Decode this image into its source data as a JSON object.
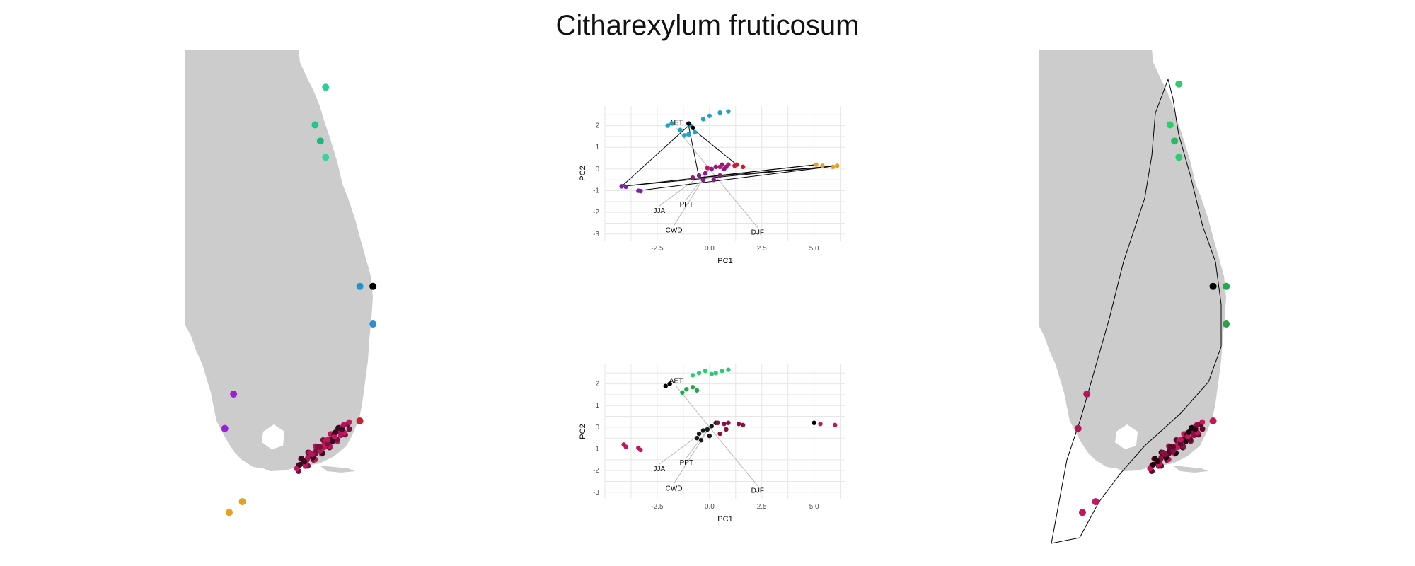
{
  "title": "Citharexylum fruticosum",
  "colors": {
    "land": "#cccccc",
    "grid": "#e6e6e6",
    "vector": "#b8b8b8",
    "hull": "#000000"
  },
  "chart_data": [
    {
      "type": "map",
      "panel": "map-left",
      "points": [
        {
          "lon": -80.6,
          "lat": 28.55,
          "color": "#2ecf8f"
        },
        {
          "lon": -80.72,
          "lat": 28.2,
          "color": "#22c58a"
        },
        {
          "lon": -80.66,
          "lat": 28.05,
          "color": "#20b879"
        },
        {
          "lon": -80.6,
          "lat": 27.9,
          "color": "#36d49a"
        },
        {
          "lon": -80.21,
          "lat": 26.7,
          "color": "#2096c8"
        },
        {
          "lon": -80.06,
          "lat": 26.7,
          "color": "#000000"
        },
        {
          "lon": -80.06,
          "lat": 26.35,
          "color": "#2b8fd0"
        },
        {
          "lon": -81.65,
          "lat": 25.7,
          "color": "#9a20d8"
        },
        {
          "lon": -81.75,
          "lat": 25.38,
          "color": "#9a20d8"
        },
        {
          "lon": -80.21,
          "lat": 25.45,
          "color": "#d11a2a"
        },
        {
          "lon": -81.7,
          "lat": 24.6,
          "color": "#e8a020"
        },
        {
          "lon": -81.55,
          "lat": 24.7,
          "color": "#e8a020"
        }
      ]
    },
    {
      "type": "scatter",
      "panel": "pca-top",
      "xlabel": "PC1",
      "ylabel": "PC2",
      "xlim": [
        -5,
        6.5
      ],
      "ylim": [
        -3.3,
        2.9
      ],
      "xticks": [
        -2.5,
        0.0,
        2.5,
        5.0
      ],
      "xtick_labels": [
        "-2.5",
        "0.0",
        "2.5",
        "5.0"
      ],
      "yticks": [
        -3,
        -2,
        -1,
        0,
        1,
        2
      ],
      "ytick_labels": [
        "-3",
        "-2",
        "-1",
        "0",
        "1",
        "2"
      ],
      "vectors": [
        {
          "name": "AET",
          "x": -1.6,
          "y": 1.9
        },
        {
          "name": "PPT",
          "x": -1.1,
          "y": -1.4
        },
        {
          "name": "JJA",
          "x": -2.4,
          "y": -1.7
        },
        {
          "name": "CWD",
          "x": -1.7,
          "y": -2.6
        },
        {
          "name": "DJF",
          "x": 2.3,
          "y": -2.7
        }
      ],
      "clusters": [
        {
          "color": "#1fa3c6",
          "points": [
            [
              -2.0,
              2.0
            ],
            [
              -1.8,
              2.1
            ],
            [
              -1.4,
              1.8
            ],
            [
              -1.0,
              1.6
            ],
            [
              -0.7,
              1.7
            ],
            [
              -0.3,
              2.3
            ],
            [
              0.0,
              2.45
            ],
            [
              0.5,
              2.6
            ],
            [
              0.9,
              2.65
            ],
            [
              -1.2,
              1.55
            ],
            [
              -0.9,
              2.0
            ]
          ]
        },
        {
          "color": "#000000",
          "points": [
            [
              -1.0,
              2.1
            ],
            [
              -0.8,
              1.9
            ]
          ]
        },
        {
          "color": "#8a1a8a",
          "points": [
            [
              -0.8,
              -0.4
            ],
            [
              -0.5,
              -0.3
            ],
            [
              -0.2,
              -0.2
            ],
            [
              0.1,
              0.0
            ],
            [
              0.3,
              0.1
            ],
            [
              0.5,
              -0.3
            ],
            [
              0.7,
              0.0
            ],
            [
              -0.3,
              -0.5
            ],
            [
              0.2,
              -0.5
            ],
            [
              0.6,
              0.2
            ],
            [
              0.8,
              0.1
            ]
          ]
        },
        {
          "color": "#c2185b",
          "points": [
            [
              0.5,
              0.1
            ],
            [
              0.9,
              0.2
            ],
            [
              1.2,
              0.15
            ],
            [
              -0.1,
              0.05
            ]
          ]
        },
        {
          "color": "#d11a2a",
          "points": [
            [
              1.3,
              0.2
            ],
            [
              1.6,
              0.1
            ]
          ]
        },
        {
          "color": "#e6a020",
          "points": [
            [
              5.1,
              0.2
            ],
            [
              5.4,
              0.15
            ],
            [
              5.9,
              0.1
            ],
            [
              6.1,
              0.15
            ]
          ]
        },
        {
          "color": "#7a1fb0",
          "points": [
            [
              -4.2,
              -0.8
            ],
            [
              -4.0,
              -0.82
            ],
            [
              -3.4,
              -1.0
            ],
            [
              -3.3,
              -1.02
            ]
          ]
        }
      ],
      "hull_edges": [
        [
          [
            -4.2,
            -0.8
          ],
          [
            -1.0,
            2.0
          ]
        ],
        [
          [
            -1.0,
            2.0
          ],
          [
            1.3,
            0.2
          ]
        ],
        [
          [
            -4.2,
            -0.8
          ],
          [
            5.1,
            0.2
          ]
        ],
        [
          [
            -4.2,
            -0.8
          ],
          [
            6.1,
            0.15
          ]
        ],
        [
          [
            -3.4,
            -1.0
          ],
          [
            6.1,
            0.15
          ]
        ],
        [
          [
            -0.5,
            -0.4
          ],
          [
            5.1,
            0.2
          ]
        ],
        [
          [
            -0.5,
            -0.4
          ],
          [
            6.1,
            0.15
          ]
        ],
        [
          [
            -0.5,
            -0.4
          ],
          [
            -1.0,
            2.0
          ]
        ]
      ]
    },
    {
      "type": "scatter",
      "panel": "pca-bottom",
      "xlabel": "PC1",
      "ylabel": "PC2",
      "xlim": [
        -5,
        6.5
      ],
      "ylim": [
        -3.3,
        2.9
      ],
      "xticks": [
        -2.5,
        0.0,
        2.5,
        5.0
      ],
      "xtick_labels": [
        "-2.5",
        "0.0",
        "2.5",
        "5.0"
      ],
      "yticks": [
        -3,
        -2,
        -1,
        0,
        1,
        2
      ],
      "ytick_labels": [
        "-3",
        "-2",
        "-1",
        "0",
        "1",
        "2"
      ],
      "vectors": [
        {
          "name": "AET",
          "x": -1.6,
          "y": 1.9
        },
        {
          "name": "PPT",
          "x": -1.1,
          "y": -1.4
        },
        {
          "name": "JJA",
          "x": -2.4,
          "y": -1.7
        },
        {
          "name": "CWD",
          "x": -1.7,
          "y": -2.6
        },
        {
          "name": "DJF",
          "x": 2.3,
          "y": -2.7
        }
      ],
      "clusters": [
        {
          "color": "#1faa50",
          "points": [
            [
              -1.3,
              1.6
            ],
            [
              -1.1,
              1.75
            ],
            [
              -0.8,
              1.85
            ],
            [
              -0.6,
              1.7
            ]
          ]
        },
        {
          "color": "#2ecc71",
          "points": [
            [
              -0.8,
              2.4
            ],
            [
              -0.5,
              2.5
            ],
            [
              -0.2,
              2.6
            ],
            [
              0.1,
              2.45
            ],
            [
              0.3,
              2.5
            ],
            [
              0.6,
              2.6
            ],
            [
              0.9,
              2.65
            ]
          ]
        },
        {
          "color": "#000000",
          "points": [
            [
              -2.1,
              1.9
            ],
            [
              -1.9,
              2.0
            ],
            [
              5.0,
              0.2
            ]
          ]
        },
        {
          "color": "#1a1a1a",
          "points": [
            [
              -0.5,
              -0.3
            ],
            [
              -0.3,
              -0.15
            ],
            [
              -0.1,
              -0.1
            ],
            [
              0.1,
              0.05
            ],
            [
              0.3,
              0.2
            ],
            [
              -0.6,
              -0.5
            ],
            [
              0.0,
              -0.4
            ],
            [
              -0.4,
              -0.6
            ]
          ]
        },
        {
          "color": "#8a1040",
          "points": [
            [
              0.4,
              0.2
            ],
            [
              0.7,
              0.15
            ],
            [
              0.5,
              -0.3
            ],
            [
              0.8,
              -0.1
            ],
            [
              0.9,
              0.2
            ],
            [
              1.4,
              0.15
            ],
            [
              1.6,
              0.1
            ]
          ]
        },
        {
          "color": "#c2185b",
          "points": [
            [
              5.3,
              0.15
            ],
            [
              6.0,
              0.1
            ],
            [
              -4.1,
              -0.8
            ],
            [
              -4.0,
              -0.9
            ],
            [
              -3.4,
              -0.95
            ],
            [
              -3.3,
              -1.05
            ]
          ]
        }
      ]
    },
    {
      "type": "map",
      "panel": "map-right",
      "points": [
        {
          "lon": -80.6,
          "lat": 28.58,
          "color": "#2ecc71"
        },
        {
          "lon": -80.7,
          "lat": 28.2,
          "color": "#2ecc71"
        },
        {
          "lon": -80.65,
          "lat": 28.05,
          "color": "#29b864"
        },
        {
          "lon": -80.6,
          "lat": 27.9,
          "color": "#2ecc71"
        },
        {
          "lon": -80.21,
          "lat": 26.7,
          "color": "#000000"
        },
        {
          "lon": -80.06,
          "lat": 26.7,
          "color": "#1faa50"
        },
        {
          "lon": -80.06,
          "lat": 26.35,
          "color": "#2ba04a"
        },
        {
          "lon": -81.65,
          "lat": 25.7,
          "color": "#b0185a"
        },
        {
          "lon": -81.75,
          "lat": 25.38,
          "color": "#b0185a"
        },
        {
          "lon": -80.21,
          "lat": 25.45,
          "color": "#c2185b"
        },
        {
          "lon": -81.7,
          "lat": 24.6,
          "color": "#c2185b"
        },
        {
          "lon": -81.55,
          "lat": 24.7,
          "color": "#c2185b"
        }
      ]
    }
  ]
}
